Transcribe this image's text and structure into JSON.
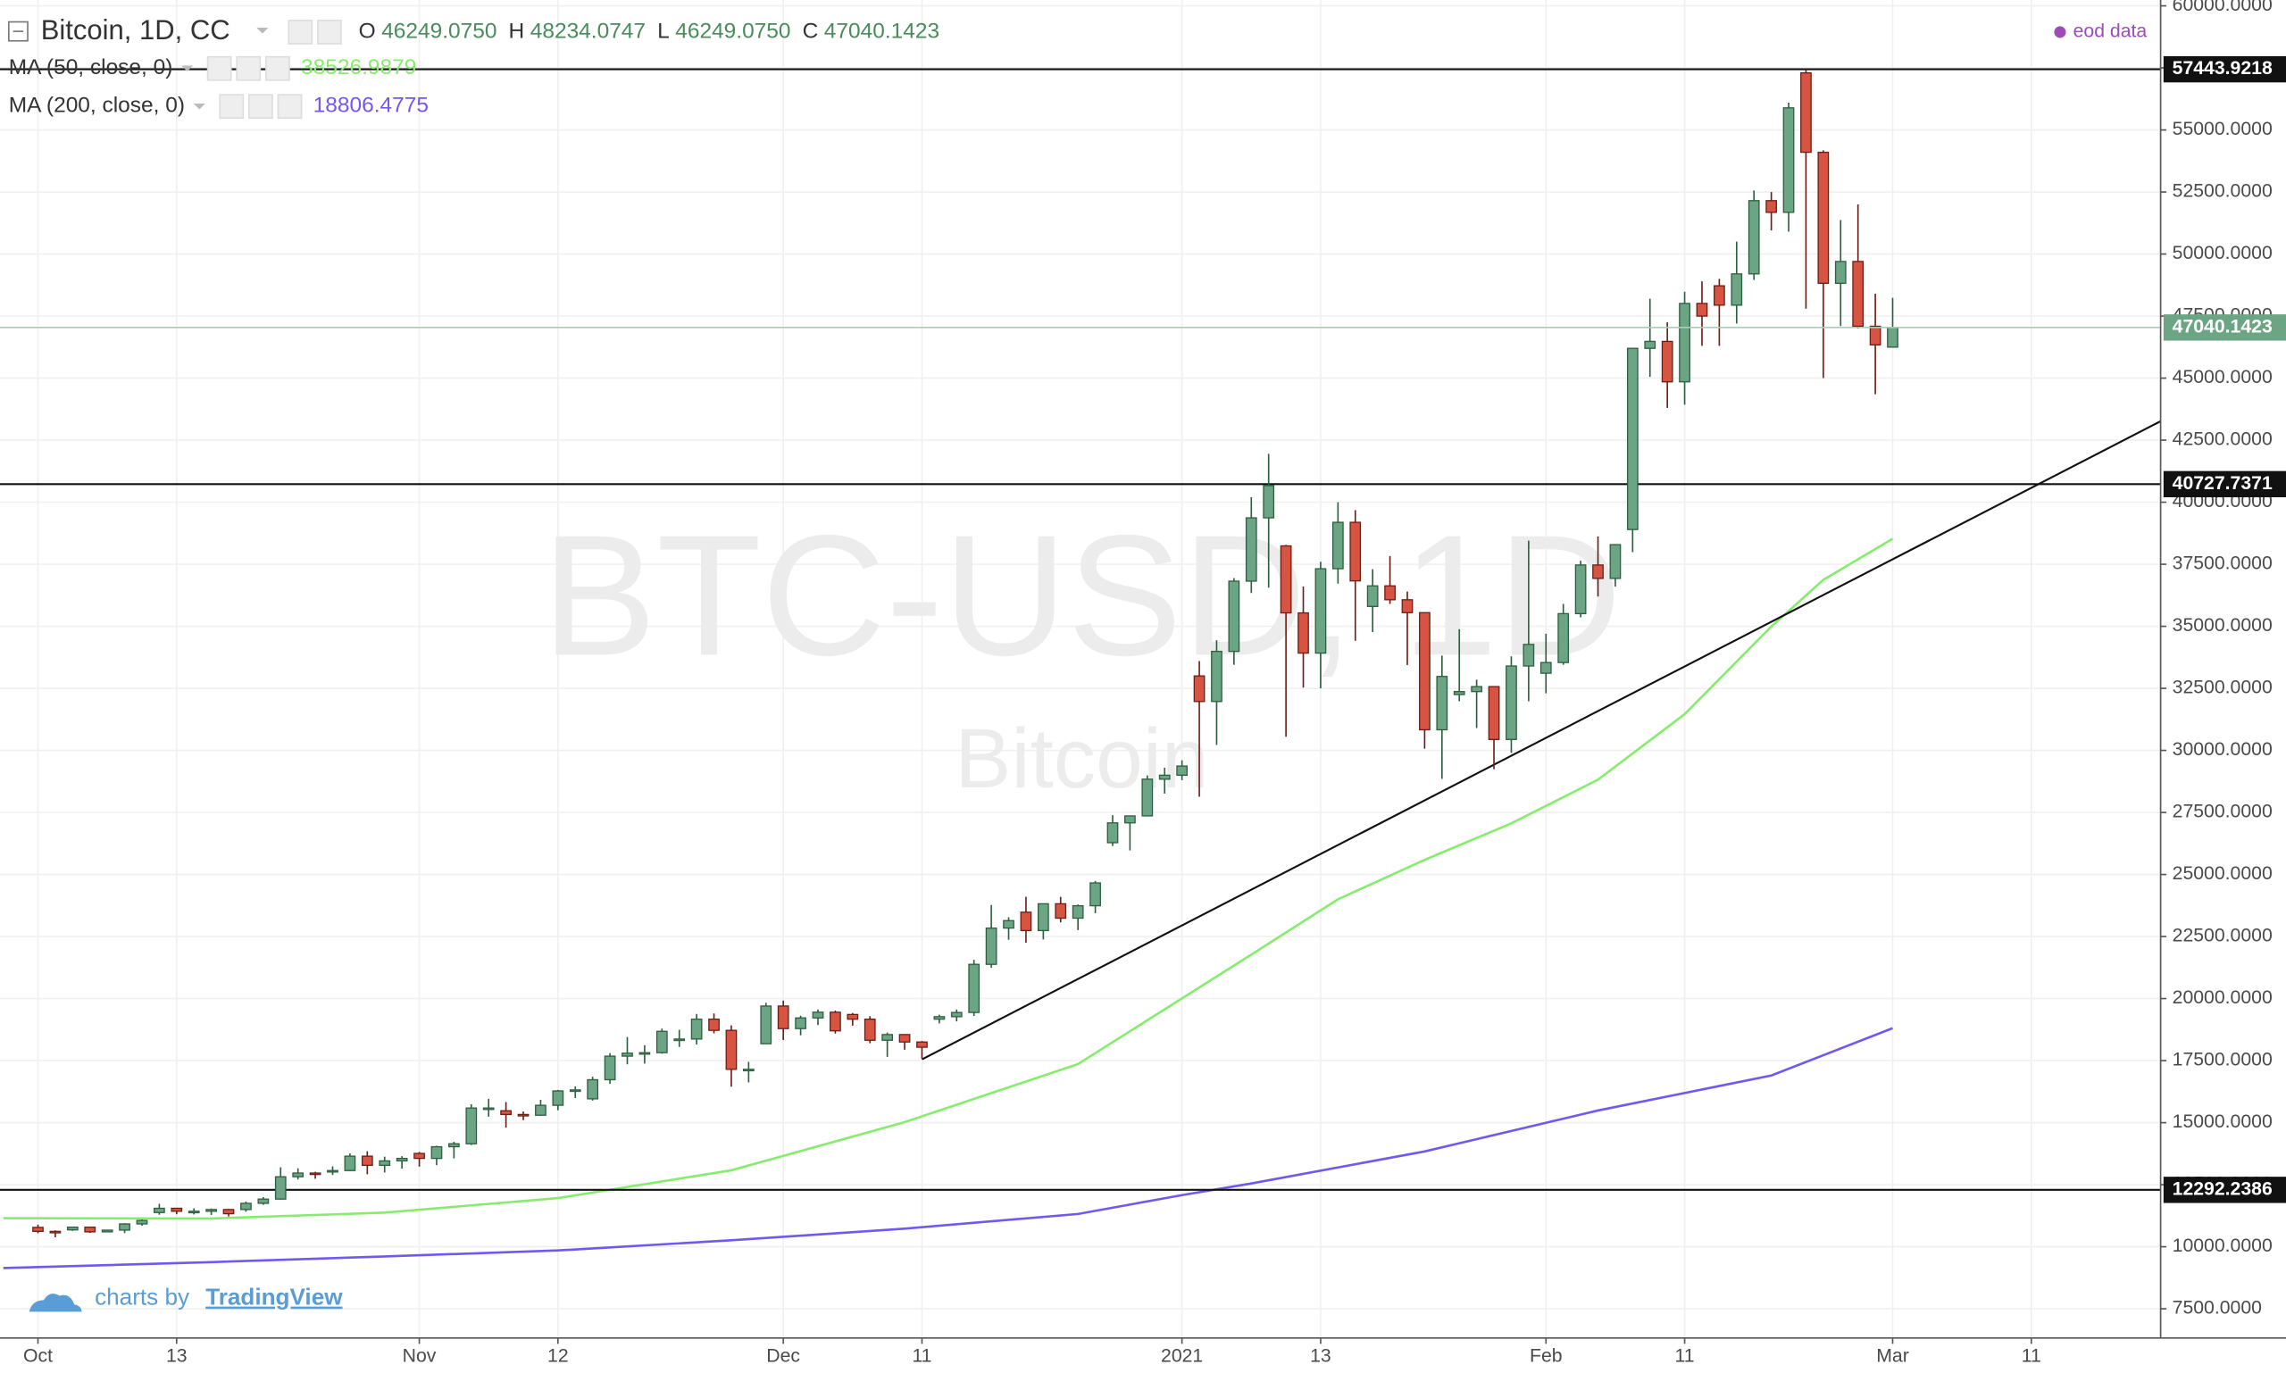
{
  "chart_data": {
    "type": "candlestick",
    "title": "Bitcoin, 1D, CC",
    "ohlc_letters": [
      "O",
      "H",
      "L",
      "C"
    ],
    "ohlc_labels": [
      "46249.0750",
      "48234.0747",
      "46249.0750",
      "47040.1423"
    ],
    "source_note": "eod data",
    "watermark": [
      "BTC-USD, 1D",
      "Bitcoin"
    ],
    "credit": [
      "charts by",
      "TradingView"
    ],
    "up_color": "#6ba583",
    "down_color": "#d75442",
    "open": [
      10780,
      10620,
      10680,
      10790,
      10600,
      10670,
      10920,
      11380,
      11550,
      11430,
      11430,
      11500,
      11500,
      11750,
      11920,
      12820,
      12970,
      13030,
      13070,
      13650,
      13280,
      13460,
      13760,
      13560,
      14030,
      14150,
      15590,
      15480,
      15330,
      15300,
      15700,
      16280,
      15960,
      16730,
      17680,
      17800,
      17820,
      18370,
      18370,
      19170,
      18720,
      17150,
      18180,
      19700,
      18790,
      19220,
      19450,
      19360,
      19170,
      18320,
      18550,
      18250,
      19170,
      19270,
      19440,
      21380,
      22840,
      23480,
      22740,
      23820,
      23240,
      23740,
      26280,
      27080,
      27360,
      28840,
      29000,
      33000,
      31970,
      33990,
      36820,
      39370,
      38240,
      35540,
      33920,
      37320,
      39190,
      35800,
      36630,
      36070,
      35550,
      30830,
      32250,
      32370,
      32570,
      30440,
      33400,
      33110,
      33540,
      35510,
      37470,
      36930,
      38900,
      46200,
      46480,
      44850,
      48010,
      48720,
      47940,
      49200,
      52150,
      51680,
      57300,
      54100,
      48820,
      49700,
      47090,
      46249.075
    ],
    "high": [
      10890,
      10660,
      10800,
      10800,
      10680,
      10950,
      11100,
      11730,
      11550,
      11550,
      11540,
      11530,
      11820,
      12000,
      13200,
      13160,
      13020,
      13240,
      13760,
      13850,
      13630,
      13650,
      13820,
      14070,
      14230,
      15740,
      15960,
      15830,
      15450,
      15920,
      16320,
      16460,
      16850,
      17800,
      18450,
      18120,
      18790,
      18740,
      19380,
      19400,
      18920,
      17450,
      19830,
      19920,
      19310,
      19560,
      19520,
      19420,
      19290,
      18630,
      18560,
      18290,
      19350,
      19560,
      21560,
      23770,
      23280,
      24100,
      23830,
      24100,
      23790,
      24740,
      27390,
      27370,
      28990,
      29300,
      29600,
      33600,
      34440,
      36940,
      40200,
      41950,
      38280,
      36600,
      37600,
      40000,
      39680,
      37300,
      37830,
      36400,
      35560,
      33820,
      34880,
      32850,
      32570,
      33790,
      38450,
      34700,
      35900,
      37640,
      38620,
      38300,
      46220,
      48200,
      47250,
      48480,
      48900,
      49000,
      50500,
      52560,
      52500,
      56100,
      57443.9218,
      54180,
      51370,
      52000,
      48400,
      48234.0747
    ],
    "low": [
      10540,
      10380,
      10640,
      10560,
      10590,
      10550,
      10850,
      11290,
      11310,
      11300,
      11280,
      11220,
      11410,
      11690,
      11900,
      12710,
      12740,
      12890,
      13050,
      12920,
      12990,
      13150,
      13230,
      13290,
      13560,
      14100,
      15240,
      14800,
      15100,
      15270,
      15500,
      15990,
      15890,
      16560,
      17350,
      17380,
      17780,
      18050,
      18150,
      18600,
      16450,
      16620,
      18180,
      18330,
      18520,
      18930,
      18590,
      18910,
      18200,
      17650,
      17940,
      17580,
      19000,
      19080,
      19300,
      21240,
      22370,
      22250,
      22380,
      23070,
      22760,
      23440,
      26150,
      25970,
      27340,
      28260,
      28800,
      28130,
      30220,
      33450,
      36340,
      36560,
      30550,
      32530,
      32500,
      36720,
      34420,
      34770,
      35900,
      33440,
      30070,
      28850,
      31980,
      30900,
      29240,
      29900,
      31980,
      32300,
      33450,
      35360,
      36200,
      36600,
      37990,
      45050,
      43800,
      43930,
      46300,
      46300,
      47200,
      48960,
      50950,
      50900,
      47800,
      45000,
      47100,
      47000,
      44350,
      46249.075
    ],
    "close": [
      10620,
      10570,
      10790,
      10600,
      10670,
      10920,
      11060,
      11550,
      11430,
      11430,
      11500,
      11330,
      11750,
      11920,
      12820,
      12970,
      12930,
      13070,
      13650,
      13280,
      13460,
      13560,
      13560,
      14030,
      14150,
      15590,
      15590,
      15330,
      15300,
      15700,
      16280,
      16320,
      16730,
      17680,
      17800,
      17820,
      18680,
      18370,
      19170,
      18720,
      17150,
      17150,
      19700,
      18790,
      19220,
      19450,
      18700,
      19170,
      18320,
      18550,
      18250,
      18040,
      19270,
      19440,
      21380,
      22840,
      23140,
      22740,
      23820,
      23240,
      23740,
      24660,
      27080,
      27360,
      28840,
      29000,
      29370,
      31970,
      33990,
      36820,
      39370,
      40670,
      35540,
      33920,
      37320,
      39190,
      36830,
      36630,
      36070,
      35550,
      30830,
      32980,
      32370,
      32570,
      30440,
      33400,
      34270,
      33540,
      35510,
      37470,
      36930,
      38290,
      46200,
      46480,
      44850,
      48010,
      47500,
      47940,
      49200,
      52150,
      51680,
      55890,
      54100,
      48820,
      49700,
      47090,
      46340,
      47040.1423
    ],
    "lines": [
      {
        "name": "MA (50, close, 0)",
        "color": "#86ec6e",
        "x": [
          -2,
          10,
          20,
          30,
          40,
          50,
          60,
          70,
          75,
          80,
          85,
          90,
          95,
          100,
          103,
          107
        ],
        "values": [
          11150,
          11140,
          11375,
          11960,
          13080,
          15020,
          17360,
          21770,
          24000,
          25590,
          27060,
          28820,
          31460,
          34990,
          36870,
          38526.9879
        ]
      },
      {
        "name": "MA (200, close, 0)",
        "color": "#7158f0",
        "x": [
          -2,
          10,
          20,
          30,
          40,
          50,
          60,
          66,
          70,
          80,
          90,
          100,
          107
        ],
        "values": [
          9140,
          9380,
          9610,
          9850,
          10260,
          10730,
          11320,
          12080,
          12550,
          13840,
          15490,
          16900,
          18806.4775
        ]
      }
    ],
    "hlines": [
      57443.9218,
      40727.7371,
      12292.2386
    ],
    "trend_line": {
      "x": [
        51,
        122.46
      ],
      "y": [
        17550,
        43263
      ]
    },
    "xlim": [
      -2.19,
      122.46
    ],
    "ylim": [
      6323,
      60235
    ],
    "xticks": [
      {
        "value": 0,
        "label": "Oct"
      },
      {
        "value": 8,
        "label": "13"
      },
      {
        "value": 22,
        "label": "Nov"
      },
      {
        "value": 30,
        "label": "12"
      },
      {
        "value": 43,
        "label": "Dec"
      },
      {
        "value": 51,
        "label": "11"
      },
      {
        "value": 66,
        "label": "2021"
      },
      {
        "value": 74,
        "label": "13"
      },
      {
        "value": 87,
        "label": "Feb"
      },
      {
        "value": 95,
        "label": "11"
      },
      {
        "value": 107,
        "label": "Mar"
      },
      {
        "value": 115,
        "label": "11"
      }
    ],
    "yticks": [
      {
        "value": 7500,
        "label": "7500.0000"
      },
      {
        "value": 10000,
        "label": "10000.0000"
      },
      {
        "value": 12500,
        "label": "12500.0000"
      },
      {
        "value": 15000,
        "label": "15000.0000"
      },
      {
        "value": 17500,
        "label": "17500.0000"
      },
      {
        "value": 20000,
        "label": "20000.0000"
      },
      {
        "value": 22500,
        "label": "22500.0000"
      },
      {
        "value": 25000,
        "label": "25000.0000"
      },
      {
        "value": 27500,
        "label": "27500.0000"
      },
      {
        "value": 30000,
        "label": "30000.0000"
      },
      {
        "value": 32500,
        "label": "32500.0000"
      },
      {
        "value": 35000,
        "label": "35000.0000"
      },
      {
        "value": 37500,
        "label": "37500.0000"
      },
      {
        "value": 40000,
        "label": "40000.0000"
      },
      {
        "value": 42500,
        "label": "42500.0000"
      },
      {
        "value": 45000,
        "label": "45000.0000"
      },
      {
        "value": 47500,
        "label": "47500.0000"
      },
      {
        "value": 50000,
        "label": "50000.0000"
      },
      {
        "value": 52500,
        "label": "52500.0000"
      },
      {
        "value": 55000,
        "label": "55000.0000"
      },
      {
        "value": 57500,
        "label": "57500.0000"
      },
      {
        "value": 60000,
        "label": "60000.0000"
      }
    ],
    "grid": true
  }
}
